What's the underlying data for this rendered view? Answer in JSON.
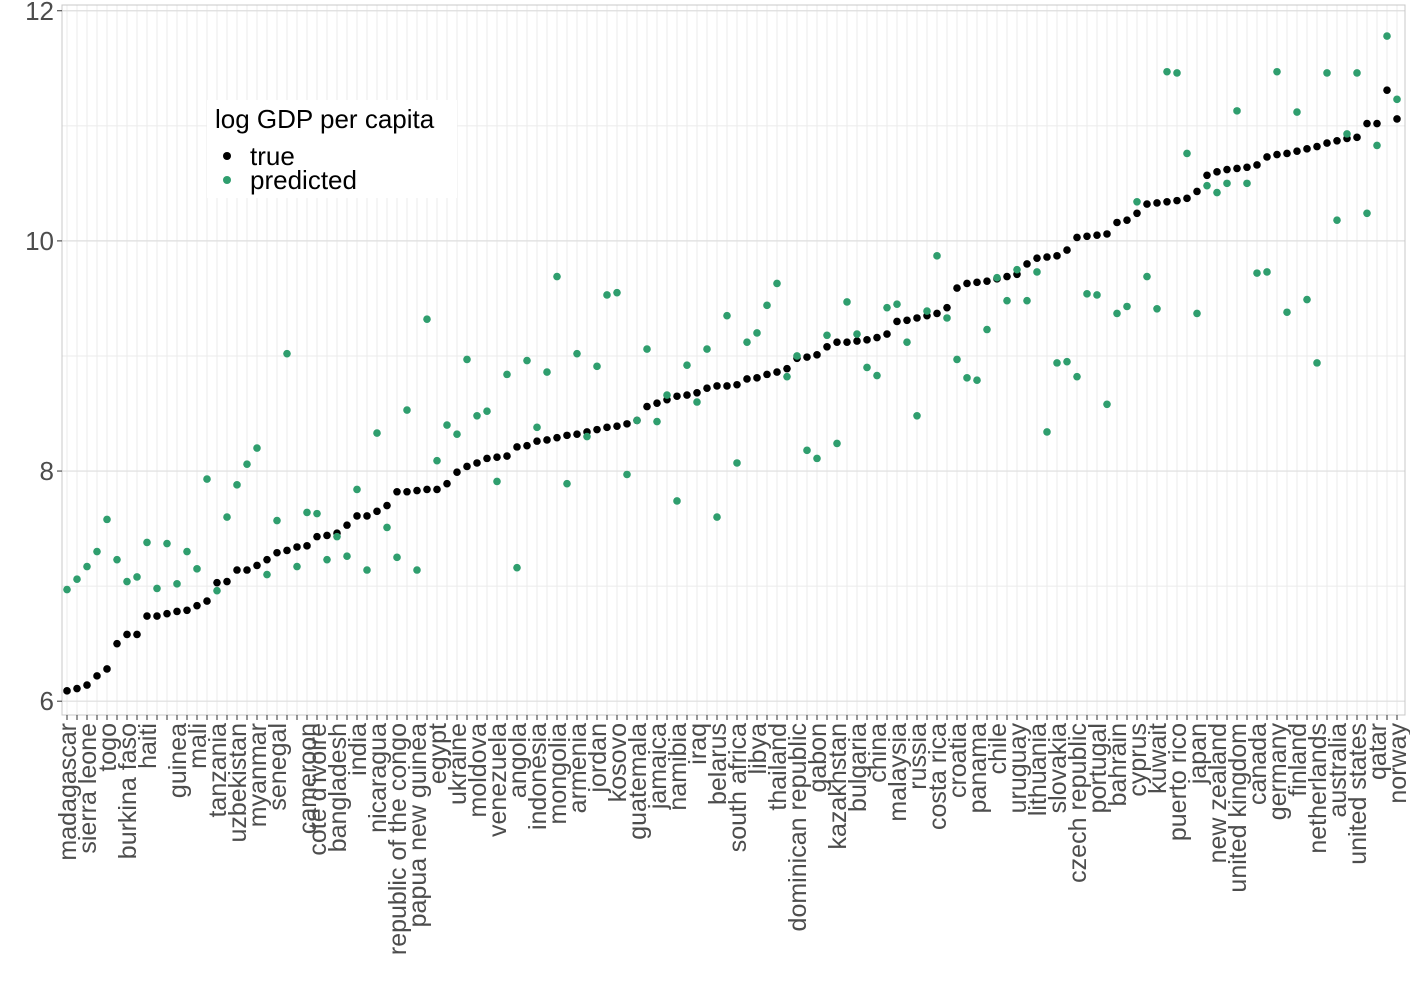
{
  "chart_data": {
    "type": "scatter",
    "ylim": [
      5.88,
      12.05
    ],
    "yticks": [
      6,
      8,
      10,
      12
    ],
    "grid": true,
    "legend": {
      "title": "log GDP per capita",
      "placement": "top-left",
      "entries": [
        "true",
        "predicted"
      ]
    },
    "colors": {
      "true": "#000000",
      "predicted": "#2f9e6e"
    },
    "n_categories": 134,
    "categories": [
      {
        "i": 0,
        "label": "madagascar",
        "true": 6.09,
        "predicted": 6.97
      },
      {
        "i": 2,
        "label": "sierra leone",
        "true": 6.14,
        "predicted": 7.17
      },
      {
        "i": 4,
        "label": "togo",
        "true": 6.28,
        "predicted": 7.58
      },
      {
        "i": 6,
        "label": "burkina faso",
        "true": 6.58,
        "predicted": 7.04
      },
      {
        "i": 8,
        "label": "haiti",
        "true": 6.74,
        "predicted": 7.38
      },
      {
        "i": 11,
        "label": "guinea",
        "true": 6.78,
        "predicted": 7.02
      },
      {
        "i": 13,
        "label": "mali",
        "true": 6.83,
        "predicted": 7.15
      },
      {
        "i": 15,
        "label": "tanzania",
        "true": 7.03,
        "predicted": 6.96
      },
      {
        "i": 17,
        "label": "uzbekistan",
        "true": 7.14,
        "predicted": 7.88
      },
      {
        "i": 19,
        "label": "myanmar",
        "true": 7.18,
        "predicted": 8.2
      },
      {
        "i": 21,
        "label": "senegal",
        "true": 7.29,
        "predicted": 7.57
      },
      {
        "i": 24,
        "label": "cameroon",
        "true": 7.35,
        "predicted": 7.64
      },
      {
        "i": 25,
        "label": "cote d'ivoire",
        "true": 7.43,
        "predicted": 7.63
      },
      {
        "i": 27,
        "label": "bangladesh",
        "true": 7.46,
        "predicted": 7.43
      },
      {
        "i": 29,
        "label": "india",
        "true": 7.61,
        "predicted": 7.84
      },
      {
        "i": 31,
        "label": "nicaragua",
        "true": 7.65,
        "predicted": 8.33
      },
      {
        "i": 33,
        "label": "republic of the congo",
        "true": 7.82,
        "predicted": 7.25
      },
      {
        "i": 35,
        "label": "papua new guinea",
        "true": 7.83,
        "predicted": 7.14
      },
      {
        "i": 37,
        "label": "egypt",
        "true": 7.84,
        "predicted": 8.09
      },
      {
        "i": 39,
        "label": "ukraine",
        "true": 7.99,
        "predicted": 8.32
      },
      {
        "i": 41,
        "label": "moldova",
        "true": 8.07,
        "predicted": 8.48
      },
      {
        "i": 43,
        "label": "venezuela",
        "true": 8.12,
        "predicted": 7.91
      },
      {
        "i": 45,
        "label": "angola",
        "true": 8.21,
        "predicted": 7.16
      },
      {
        "i": 47,
        "label": "indonesia",
        "true": 8.26,
        "predicted": 8.38
      },
      {
        "i": 49,
        "label": "mongolia",
        "true": 8.29,
        "predicted": 9.69
      },
      {
        "i": 51,
        "label": "armenia",
        "true": 8.32,
        "predicted": 9.02
      },
      {
        "i": 53,
        "label": "jordan",
        "true": 8.36,
        "predicted": 8.91
      },
      {
        "i": 55,
        "label": "kosovo",
        "true": 8.39,
        "predicted": 9.55
      },
      {
        "i": 57,
        "label": "guatemala",
        "true": 8.44,
        "predicted": 8.44
      },
      {
        "i": 59,
        "label": "jamaica",
        "true": 8.59,
        "predicted": 8.43
      },
      {
        "i": 61,
        "label": "namibia",
        "true": 8.65,
        "predicted": 7.74
      },
      {
        "i": 63,
        "label": "iraq",
        "true": 8.68,
        "predicted": 8.6
      },
      {
        "i": 65,
        "label": "belarus",
        "true": 8.74,
        "predicted": 7.6
      },
      {
        "i": 67,
        "label": "south africa",
        "true": 8.75,
        "predicted": 8.07
      },
      {
        "i": 69,
        "label": "libya",
        "true": 8.81,
        "predicted": 9.2
      },
      {
        "i": 71,
        "label": "thailand",
        "true": 8.86,
        "predicted": 9.63
      },
      {
        "i": 73,
        "label": "dominican republic",
        "true": 8.98,
        "predicted": 9.0
      },
      {
        "i": 75,
        "label": "gabon",
        "true": 9.01,
        "predicted": 8.11
      },
      {
        "i": 77,
        "label": "kazakhstan",
        "true": 9.12,
        "predicted": 8.24
      },
      {
        "i": 79,
        "label": "bulgaria",
        "true": 9.13,
        "predicted": 9.19
      },
      {
        "i": 81,
        "label": "china",
        "true": 9.16,
        "predicted": 8.83
      },
      {
        "i": 83,
        "label": "malaysia",
        "true": 9.3,
        "predicted": 9.45
      },
      {
        "i": 85,
        "label": "russia",
        "true": 9.33,
        "predicted": 8.48
      },
      {
        "i": 87,
        "label": "costa rica",
        "true": 9.37,
        "predicted": 9.87
      },
      {
        "i": 89,
        "label": "croatia",
        "true": 9.59,
        "predicted": 8.97
      },
      {
        "i": 91,
        "label": "panama",
        "true": 9.64,
        "predicted": 8.79
      },
      {
        "i": 93,
        "label": "chile",
        "true": 9.67,
        "predicted": 9.68
      },
      {
        "i": 95,
        "label": "uruguay",
        "true": 9.71,
        "predicted": 9.75
      },
      {
        "i": 97,
        "label": "lithuania",
        "true": 9.85,
        "predicted": 9.73
      },
      {
        "i": 99,
        "label": "slovakia",
        "true": 9.87,
        "predicted": 8.94
      },
      {
        "i": 101,
        "label": "czech republic",
        "true": 10.03,
        "predicted": 8.82
      },
      {
        "i": 103,
        "label": "portugal",
        "true": 10.05,
        "predicted": 9.53
      },
      {
        "i": 105,
        "label": "bahrain",
        "true": 10.16,
        "predicted": 9.37
      },
      {
        "i": 107,
        "label": "cyprus",
        "true": 10.24,
        "predicted": 10.34
      },
      {
        "i": 109,
        "label": "kuwait",
        "true": 10.33,
        "predicted": 9.41
      },
      {
        "i": 111,
        "label": "puerto rico",
        "true": 10.35,
        "predicted": 11.46
      },
      {
        "i": 113,
        "label": "japan",
        "true": 10.43,
        "predicted": 9.37
      },
      {
        "i": 115,
        "label": "new zealand",
        "true": 10.6,
        "predicted": 10.42
      },
      {
        "i": 117,
        "label": "united kingdom",
        "true": 10.63,
        "predicted": 11.13
      },
      {
        "i": 119,
        "label": "canada",
        "true": 10.66,
        "predicted": 9.72
      },
      {
        "i": 121,
        "label": "germany",
        "true": 10.75,
        "predicted": 11.47
      },
      {
        "i": 123,
        "label": "finland",
        "true": 10.78,
        "predicted": 11.12
      },
      {
        "i": 125,
        "label": "netherlands",
        "true": 10.82,
        "predicted": 8.94
      },
      {
        "i": 127,
        "label": "australia",
        "true": 10.87,
        "predicted": 10.18
      },
      {
        "i": 129,
        "label": "united states",
        "true": 10.9,
        "predicted": 11.46
      },
      {
        "i": 131,
        "label": "qatar",
        "true": 11.02,
        "predicted": 10.83
      },
      {
        "i": 133,
        "label": "norway",
        "true": 11.06,
        "predicted": 11.23
      }
    ],
    "unlabeled_points": [
      {
        "i": 1,
        "true": 6.11,
        "predicted": 7.06
      },
      {
        "i": 3,
        "true": 6.22,
        "predicted": 7.3
      },
      {
        "i": 5,
        "true": 6.5,
        "predicted": 7.23
      },
      {
        "i": 7,
        "true": 6.58,
        "predicted": 7.08
      },
      {
        "i": 9,
        "true": 6.74,
        "predicted": 6.98
      },
      {
        "i": 10,
        "true": 6.76,
        "predicted": 7.37
      },
      {
        "i": 12,
        "true": 6.79,
        "predicted": 7.3
      },
      {
        "i": 14,
        "true": 6.87,
        "predicted": 7.93
      },
      {
        "i": 16,
        "true": 7.04,
        "predicted": 7.6
      },
      {
        "i": 18,
        "true": 7.14,
        "predicted": 8.06
      },
      {
        "i": 20,
        "true": 7.23,
        "predicted": 7.1
      },
      {
        "i": 22,
        "true": 7.31,
        "predicted": 9.02
      },
      {
        "i": 23,
        "true": 7.34,
        "predicted": 7.17
      },
      {
        "i": 26,
        "true": 7.44,
        "predicted": 7.23
      },
      {
        "i": 28,
        "true": 7.53,
        "predicted": 7.26
      },
      {
        "i": 30,
        "true": 7.61,
        "predicted": 7.14
      },
      {
        "i": 32,
        "true": 7.7,
        "predicted": 7.51
      },
      {
        "i": 34,
        "true": 7.82,
        "predicted": 8.53
      },
      {
        "i": 36,
        "true": 7.84,
        "predicted": 9.32
      },
      {
        "i": 38,
        "true": 7.89,
        "predicted": 8.4
      },
      {
        "i": 40,
        "true": 8.04,
        "predicted": 8.97
      },
      {
        "i": 42,
        "true": 8.11,
        "predicted": 8.52
      },
      {
        "i": 44,
        "true": 8.13,
        "predicted": 8.84
      },
      {
        "i": 46,
        "true": 8.22,
        "predicted": 8.96
      },
      {
        "i": 48,
        "true": 8.27,
        "predicted": 8.86
      },
      {
        "i": 50,
        "true": 8.31,
        "predicted": 7.89
      },
      {
        "i": 52,
        "true": 8.34,
        "predicted": 8.3
      },
      {
        "i": 54,
        "true": 8.38,
        "predicted": 9.53
      },
      {
        "i": 56,
        "true": 8.41,
        "predicted": 7.97
      },
      {
        "i": 58,
        "true": 8.56,
        "predicted": 9.06
      },
      {
        "i": 60,
        "true": 8.62,
        "predicted": 8.66
      },
      {
        "i": 62,
        "true": 8.66,
        "predicted": 8.92
      },
      {
        "i": 64,
        "true": 8.72,
        "predicted": 9.06
      },
      {
        "i": 66,
        "true": 8.74,
        "predicted": 9.35
      },
      {
        "i": 68,
        "true": 8.8,
        "predicted": 9.12
      },
      {
        "i": 70,
        "true": 8.84,
        "predicted": 9.44
      },
      {
        "i": 72,
        "true": 8.89,
        "predicted": 8.82
      },
      {
        "i": 74,
        "true": 8.99,
        "predicted": 8.18
      },
      {
        "i": 76,
        "true": 9.08,
        "predicted": 9.18
      },
      {
        "i": 78,
        "true": 9.12,
        "predicted": 9.47
      },
      {
        "i": 80,
        "true": 9.14,
        "predicted": 8.9
      },
      {
        "i": 82,
        "true": 9.19,
        "predicted": 9.42
      },
      {
        "i": 84,
        "true": 9.31,
        "predicted": 9.12
      },
      {
        "i": 86,
        "true": 9.35,
        "predicted": 9.39
      },
      {
        "i": 88,
        "true": 9.42,
        "predicted": 9.33
      },
      {
        "i": 90,
        "true": 9.63,
        "predicted": 8.81
      },
      {
        "i": 92,
        "true": 9.65,
        "predicted": 9.23
      },
      {
        "i": 94,
        "true": 9.69,
        "predicted": 9.48
      },
      {
        "i": 96,
        "true": 9.8,
        "predicted": 9.48
      },
      {
        "i": 98,
        "true": 9.86,
        "predicted": 8.34
      },
      {
        "i": 100,
        "true": 9.92,
        "predicted": 8.95
      },
      {
        "i": 102,
        "true": 10.04,
        "predicted": 9.54
      },
      {
        "i": 104,
        "true": 10.06,
        "predicted": 8.58
      },
      {
        "i": 106,
        "true": 10.18,
        "predicted": 9.43
      },
      {
        "i": 108,
        "true": 10.32,
        "predicted": 9.69
      },
      {
        "i": 110,
        "true": 10.34,
        "predicted": 11.47
      },
      {
        "i": 112,
        "true": 10.37,
        "predicted": 10.76
      },
      {
        "i": 114,
        "true": 10.57,
        "predicted": 10.48
      },
      {
        "i": 116,
        "true": 10.62,
        "predicted": 10.5
      },
      {
        "i": 118,
        "true": 10.64,
        "predicted": 10.5
      },
      {
        "i": 120,
        "true": 10.73,
        "predicted": 9.73
      },
      {
        "i": 122,
        "true": 10.76,
        "predicted": 9.38
      },
      {
        "i": 124,
        "true": 10.8,
        "predicted": 9.49
      },
      {
        "i": 126,
        "true": 10.85,
        "predicted": 11.46
      },
      {
        "i": 128,
        "true": 10.89,
        "predicted": 10.93
      },
      {
        "i": 130,
        "true": 11.02,
        "predicted": 10.24
      },
      {
        "i": 132,
        "true": 11.31,
        "predicted": 11.78
      }
    ]
  }
}
